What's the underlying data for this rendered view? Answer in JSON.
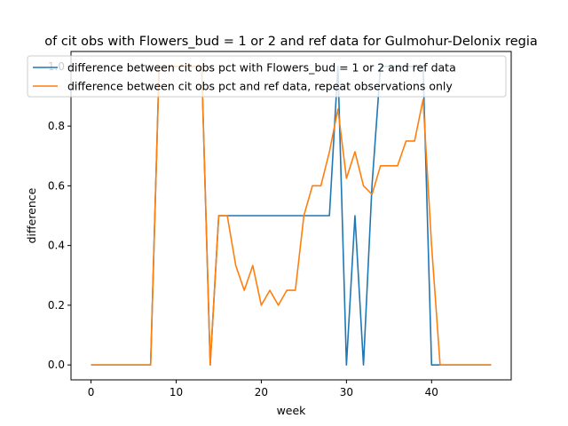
{
  "chart_data": {
    "type": "line",
    "title": "of cit obs with Flowers_bud = 1 or 2 and ref data for Gulmohur-Delonix regia",
    "xlabel": "week",
    "ylabel": "difference",
    "xlim": [
      -2.35,
      49.35
    ],
    "ylim": [
      -0.05,
      1.05
    ],
    "x_ticks": [
      0,
      10,
      20,
      30,
      40
    ],
    "y_ticks": [
      0.0,
      0.2,
      0.4,
      0.6,
      0.8,
      1.0
    ],
    "y_tick_labels": [
      "0.0",
      "0.2",
      "0.4",
      "0.6",
      "0.8",
      "1.0"
    ],
    "grid": false,
    "legend_position": "top",
    "x": [
      0,
      1,
      2,
      3,
      4,
      5,
      6,
      7,
      8,
      9,
      10,
      11,
      12,
      13,
      14,
      15,
      16,
      17,
      18,
      19,
      20,
      21,
      22,
      23,
      24,
      25,
      26,
      27,
      28,
      29,
      30,
      31,
      32,
      33,
      34,
      35,
      36,
      37,
      38,
      39,
      40,
      41,
      42,
      43,
      44,
      45,
      46,
      47
    ],
    "series": [
      {
        "name": "difference between cit obs pct with Flowers_bud = 1 or 2 and ref data",
        "color": "#1f77b4",
        "values": [
          0,
          0,
          0,
          0,
          0,
          0,
          0,
          0,
          1,
          1,
          1,
          1,
          1,
          1,
          0,
          0.5,
          0.5,
          0.5,
          0.5,
          0.5,
          0.5,
          0.5,
          0.5,
          0.5,
          0.5,
          0.5,
          0.5,
          0.5,
          0.5,
          1,
          0,
          0.5,
          0,
          0.6,
          1,
          1,
          1,
          1,
          1,
          1,
          0,
          0,
          0,
          0,
          0,
          0,
          0,
          0
        ]
      },
      {
        "name": "difference between cit obs pct and ref data, repeat observations only",
        "color": "#ff7f0e",
        "values": [
          0,
          0,
          0,
          0,
          0,
          0,
          0,
          0,
          1,
          1,
          1,
          1,
          1,
          1,
          0,
          0.5,
          0.5,
          0.333,
          0.25,
          0.333,
          0.2,
          0.25,
          0.2,
          0.25,
          0.25,
          0.5,
          0.6,
          0.6,
          0.714,
          0.857,
          0.625,
          0.714,
          0.6,
          0.571,
          0.667,
          0.667,
          0.667,
          0.75,
          0.75,
          0.889,
          0.4,
          0,
          0,
          0,
          0,
          0,
          0,
          0
        ]
      }
    ]
  }
}
